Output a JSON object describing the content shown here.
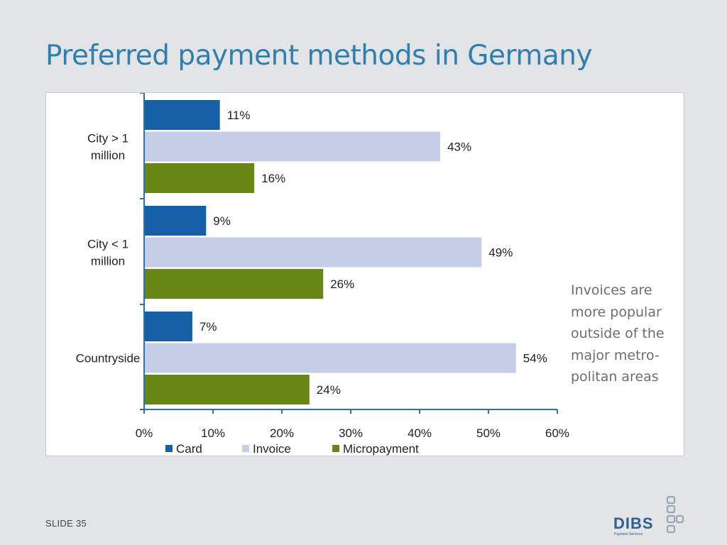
{
  "slide": {
    "title": "Preferred payment methods in Germany",
    "note": "Invoices are more popular outside of the major metro-politan areas",
    "slide_number": "SLIDE 35",
    "logo_text": "DIBS",
    "logo_subtext": "Payment Services"
  },
  "colors": {
    "title": "#2f7fb0",
    "card": "#1660a8",
    "invoice": "#c5cee6",
    "micropayment": "#688616"
  },
  "chart_data": {
    "type": "bar",
    "orientation": "horizontal",
    "categories": [
      "City > 1 million",
      "City < 1 million",
      "Countryside"
    ],
    "series": [
      {
        "name": "Card",
        "values": [
          11,
          9,
          7
        ],
        "color": "#1660a8"
      },
      {
        "name": "Invoice",
        "values": [
          43,
          49,
          54
        ],
        "color": "#c5cee6"
      },
      {
        "name": "Micropayment",
        "values": [
          16,
          26,
          24
        ],
        "color": "#688616"
      }
    ],
    "value_suffix": "%",
    "xlim": [
      0,
      60
    ],
    "xticks": [
      "0%",
      "10%",
      "20%",
      "30%",
      "40%",
      "50%",
      "60%"
    ],
    "legend_position": "bottom",
    "grid": false
  }
}
